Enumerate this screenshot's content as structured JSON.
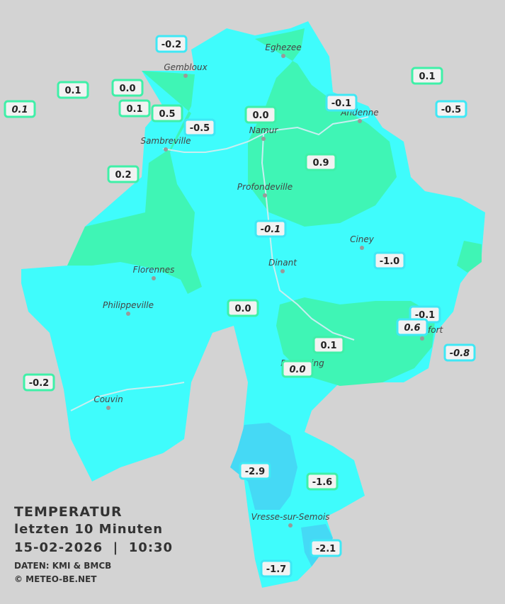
{
  "stations": [
    "-0.2",
    "0.1",
    "0.0",
    "0.1",
    "0.1",
    "0.5",
    "-0.5",
    "0.0",
    "-0.1",
    "0.1",
    "-0.5",
    "0.2",
    "0.9",
    "-0.1",
    "-1.0",
    "0.0",
    "-0.1",
    "0.6",
    "0.1",
    "-0.8",
    "0.0",
    "-0.2",
    "-2.9",
    "-1.6",
    "-2.1",
    "-1.7"
  ],
  "cities": [
    "Eghezee",
    "Gembloux",
    "Andenne",
    "Namur",
    "Sambreville",
    "Profondeville",
    "Ciney",
    "Dinant",
    "Florennes",
    "Philippeville",
    "Rochefort",
    "Beauraing",
    "Couvin",
    "Vresse-sur-Semois"
  ],
  "caption": {
    "title": "TEMPERATUR",
    "period": "letzten 10 Minuten",
    "datetime": "15-02-2026  |  10:30",
    "source": "DATEN: KMI & BMCB",
    "copyright": "© METEO-BE.NET"
  }
}
